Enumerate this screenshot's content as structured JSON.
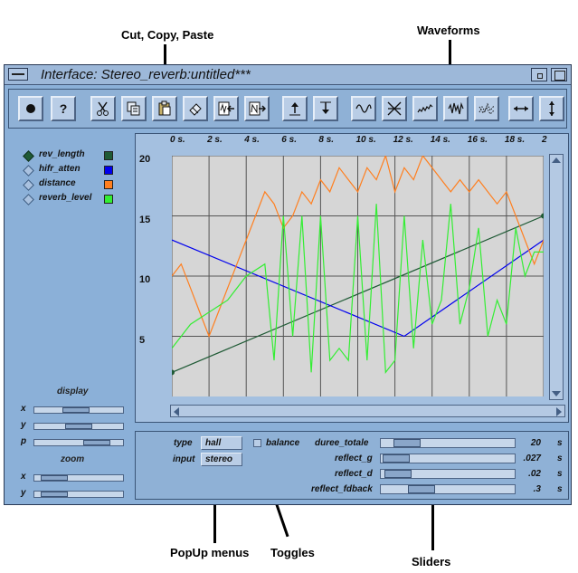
{
  "annotations": {
    "cut_copy_paste": "Cut, Copy, Paste",
    "waveforms": "Waveforms",
    "popup_menus": "PopUp menus",
    "toggles": "Toggles",
    "sliders": "Sliders"
  },
  "window": {
    "title": "Interface: Stereo_reverb:untitled***"
  },
  "toolbar": {
    "help_label": "?"
  },
  "legend": [
    {
      "label": "rev_length",
      "color": "#1f5a35",
      "selected": true
    },
    {
      "label": "hifr_atten",
      "color": "#0000ee",
      "selected": false
    },
    {
      "label": "distance",
      "color": "#ff7f1f",
      "selected": false
    },
    {
      "label": "reverb_level",
      "color": "#33ee33",
      "selected": false
    }
  ],
  "view_controls": {
    "display_label": "display",
    "zoom_label": "zoom",
    "display_axes": [
      {
        "label": "x",
        "value": 0.45
      },
      {
        "label": "y",
        "value": 0.5
      },
      {
        "label": "p",
        "value": 0.8
      }
    ],
    "zoom_axes": [
      {
        "label": "x",
        "value": 0.1
      },
      {
        "label": "y",
        "value": 0.1
      }
    ]
  },
  "chart_data": {
    "type": "line",
    "xlim": [
      0,
      20
    ],
    "ylim": [
      0,
      20
    ],
    "x_tick_labels": [
      "0 s.",
      "2 s.",
      "4 s.",
      "6 s.",
      "8 s.",
      "10 s.",
      "12 s.",
      "14 s.",
      "16 s.",
      "18 s.",
      "2"
    ],
    "y_tick_labels": [
      "20",
      "15",
      "10",
      "5"
    ],
    "y_ticks": [
      20,
      15,
      10,
      5
    ],
    "grid": true,
    "series": [
      {
        "name": "rev_length",
        "color": "#1f5a35",
        "x": [
          0,
          20
        ],
        "y": [
          2,
          15
        ]
      },
      {
        "name": "hifr_atten",
        "color": "#0000ee",
        "x": [
          0,
          12.5,
          20
        ],
        "y": [
          13,
          5,
          13
        ]
      },
      {
        "name": "distance",
        "color": "#ff7f1f",
        "x": [
          0,
          0.5,
          1,
          1.5,
          2,
          2.5,
          3,
          3.5,
          4,
          4.5,
          5,
          5.5,
          6,
          6.5,
          7,
          7.5,
          8,
          8.5,
          9,
          9.5,
          10,
          10.5,
          11,
          11.5,
          12,
          12.5,
          13,
          13.5,
          14,
          14.5,
          15,
          15.5,
          16,
          16.5,
          17,
          17.5,
          18,
          18.5,
          19,
          19.5,
          20
        ],
        "y": [
          10,
          11,
          9,
          7,
          5,
          7,
          9,
          11,
          13,
          15,
          17,
          16,
          14,
          15,
          17,
          16,
          18,
          17,
          19,
          18,
          17,
          19,
          18,
          20,
          17,
          19,
          18,
          20,
          19,
          18,
          17,
          18,
          17,
          18,
          17,
          16,
          17,
          15,
          13,
          11,
          13
        ]
      },
      {
        "name": "reverb_level",
        "color": "#33ee33",
        "x": [
          0,
          1,
          2,
          3,
          4,
          5,
          5.5,
          6,
          6.5,
          7,
          7.5,
          8,
          8.5,
          9,
          9.5,
          10,
          10.5,
          11,
          11.5,
          12,
          12.5,
          13,
          13.5,
          14,
          14.5,
          15,
          15.5,
          16,
          16.5,
          17,
          17.5,
          18,
          18.5,
          19,
          19.5,
          20
        ],
        "y": [
          4,
          6,
          7,
          8,
          10,
          11,
          3,
          15,
          5,
          15,
          2,
          15,
          3,
          4,
          3,
          15,
          3,
          16,
          2,
          3,
          15,
          4,
          13,
          6,
          8,
          16,
          6,
          9,
          14,
          5,
          8,
          6,
          14,
          10,
          12,
          12
        ]
      }
    ]
  },
  "params": {
    "type_label": "type",
    "type_value": "hall",
    "input_label": "input",
    "input_value": "stereo",
    "balance_label": "balance",
    "balance_checked": false
  },
  "sliders": [
    {
      "label": "duree_totale",
      "value": "20",
      "unit": "s",
      "position": 0.12
    },
    {
      "label": "reflect_g",
      "value": ".027",
      "unit": "s",
      "position": 0.02
    },
    {
      "label": "reflect_d",
      "value": ".02",
      "unit": "s",
      "position": 0.03
    },
    {
      "label": "reflect_fdback",
      "value": ".3",
      "unit": "s",
      "position": 0.25
    }
  ]
}
